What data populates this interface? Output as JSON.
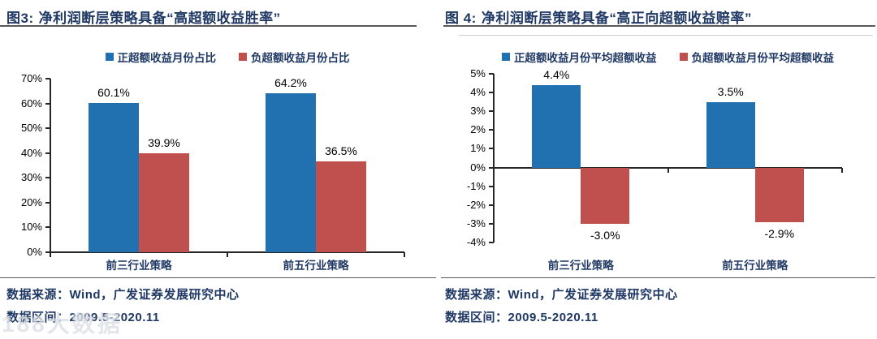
{
  "colors": {
    "bar_positive": "#2171B0",
    "bar_negative": "#C0504D",
    "navy_text": "#1F3864"
  },
  "watermark": {
    "text": "188大数据"
  },
  "panels": [
    {
      "fig_label": "图3:",
      "title": "净利润断层策略具备“高超额收益胜率”",
      "source": "数据来源：Wind，广发证券发展研究中心",
      "range": "数据区间：2009.5-2020.11"
    },
    {
      "fig_label": "图 4:",
      "title": "净利润断层策略具备“高正向超额收益赔率”",
      "source": "数据来源：Wind，广发证券发展研究中心",
      "range": "数据区间：2009.5-2020.11"
    }
  ],
  "chart_data": [
    {
      "type": "bar",
      "title": "图3: 净利润断层策略具备“高超额收益胜率”",
      "categories": [
        "前三行业策略",
        "前五行业策略"
      ],
      "series": [
        {
          "name": "正超额收益月份占比",
          "color": "#2171B0",
          "values": [
            60.1,
            64.2
          ]
        },
        {
          "name": "负超额收益月份占比",
          "color": "#C0504D",
          "values": [
            39.9,
            36.5
          ]
        }
      ],
      "value_labels": [
        [
          "60.1%",
          "64.2%"
        ],
        [
          "39.9%",
          "36.5%"
        ]
      ],
      "ylim": [
        0,
        70
      ],
      "ytick_step": 10,
      "ytick_suffix": "%",
      "legend_position": "top",
      "grid": false
    },
    {
      "type": "bar",
      "title": "图 4: 净利润断层策略具备“高正向超额收益赔率”",
      "categories": [
        "前三行业策略",
        "前五行业策略"
      ],
      "series": [
        {
          "name": "正超额收益月份平均超额收益",
          "color": "#2171B0",
          "values": [
            4.4,
            3.5
          ]
        },
        {
          "name": "负超额收益月份平均超额收益",
          "color": "#C0504D",
          "values": [
            -3.0,
            -2.9
          ]
        }
      ],
      "value_labels": [
        [
          "4.4%",
          "3.5%"
        ],
        [
          "-3.0%",
          "-2.9%"
        ]
      ],
      "ylim": [
        -4,
        5
      ],
      "ytick_step": 1,
      "ytick_suffix": "%",
      "legend_position": "top",
      "grid": false
    }
  ]
}
